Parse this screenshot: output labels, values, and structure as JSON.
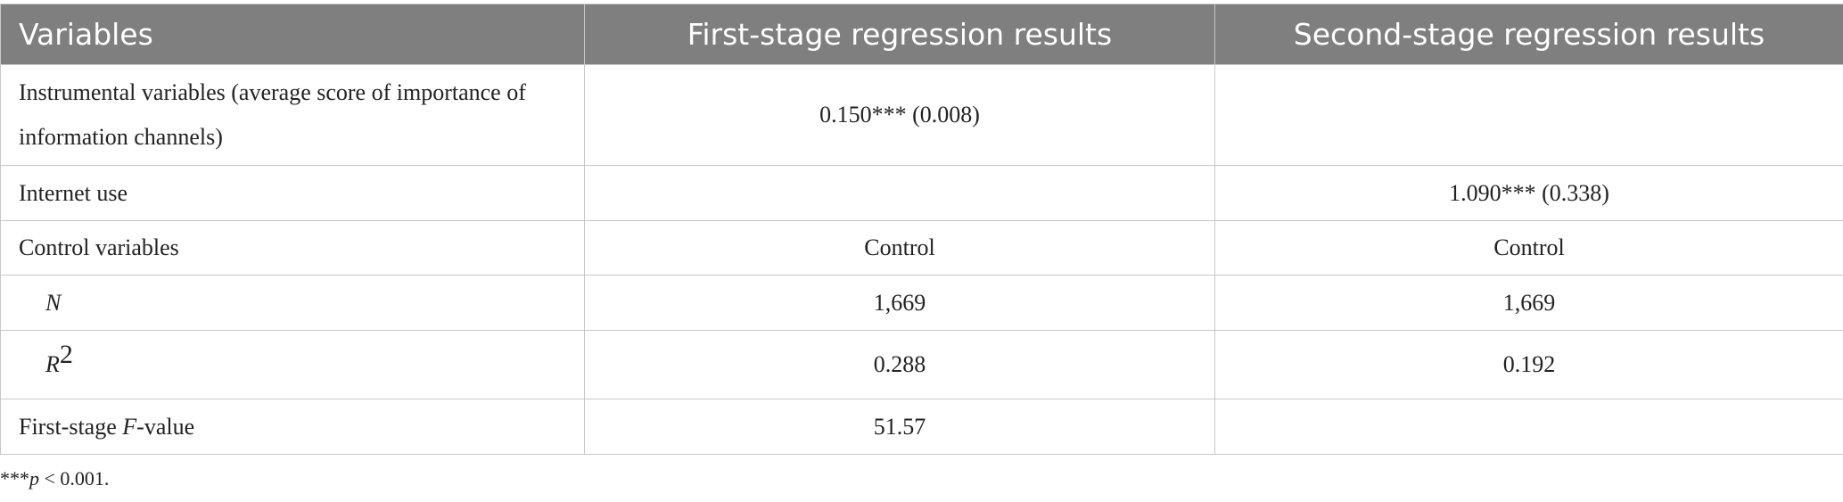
{
  "table": {
    "header": [
      "Variables",
      "First-stage regression results",
      "Second-stage regression results"
    ],
    "rows": [
      [
        "Instrumental variables (average score of importance of information channels)",
        "0.150*** (0.008)",
        null
      ],
      [
        "Internet use",
        null,
        "1.090*** (0.338)"
      ],
      [
        "Control variables",
        "Control",
        "Control"
      ],
      [
        [
          {
            "text": "N",
            "italic": true
          }
        ],
        "1,669",
        "1,669"
      ],
      [
        [
          {
            "text": "R",
            "italic": true
          },
          {
            "text": "2",
            "sup": true
          }
        ],
        "0.288",
        "0.192"
      ],
      [
        [
          {
            "text": "First-stage "
          },
          {
            "text": "F",
            "italic": true
          },
          {
            "text": "-value"
          }
        ],
        "51.57",
        null
      ]
    ],
    "indented_rows": [
      3,
      4
    ]
  },
  "footnote": [
    {
      "text": "***"
    },
    {
      "text": "p",
      "italic": true
    },
    {
      "text": " < 0.001."
    }
  ]
}
